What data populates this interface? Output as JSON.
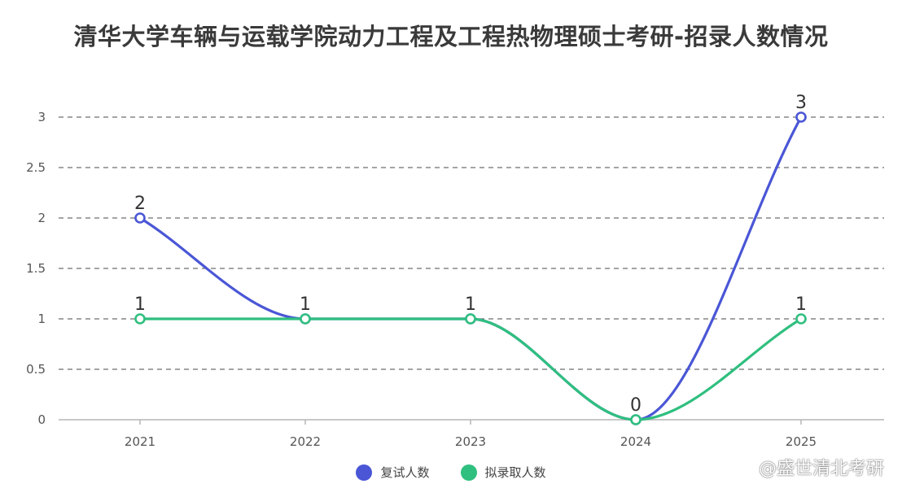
{
  "watermark": "@盛世清北考研",
  "colors": {
    "series1": "#4a56d6",
    "series2": "#2fbf7f",
    "grid": "#6e6e6e",
    "axis": "#b5b5b5",
    "tick_text": "#555555",
    "label_text": "#333333"
  },
  "chart_data": {
    "type": "line",
    "title": "清华大学车辆与运载学院动力工程及工程热物理硕士考研-招录人数情况",
    "xlabel": "",
    "ylabel": "",
    "categories": [
      "2021",
      "2022",
      "2023",
      "2024",
      "2025"
    ],
    "y_ticks": [
      "0",
      "0.5",
      "1",
      "1.5",
      "2",
      "2.5",
      "3"
    ],
    "ylim": [
      0,
      3
    ],
    "grid": true,
    "smooth": true,
    "legend_position": "bottom-center",
    "series": [
      {
        "name": "复试人数",
        "values": [
          2,
          1,
          1,
          0,
          3
        ],
        "labels": [
          "2",
          "1",
          "",
          "0",
          "3"
        ]
      },
      {
        "name": "拟录取人数",
        "values": [
          1,
          1,
          1,
          0,
          1
        ],
        "labels": [
          "1",
          "",
          "1",
          "",
          "1"
        ]
      }
    ]
  }
}
